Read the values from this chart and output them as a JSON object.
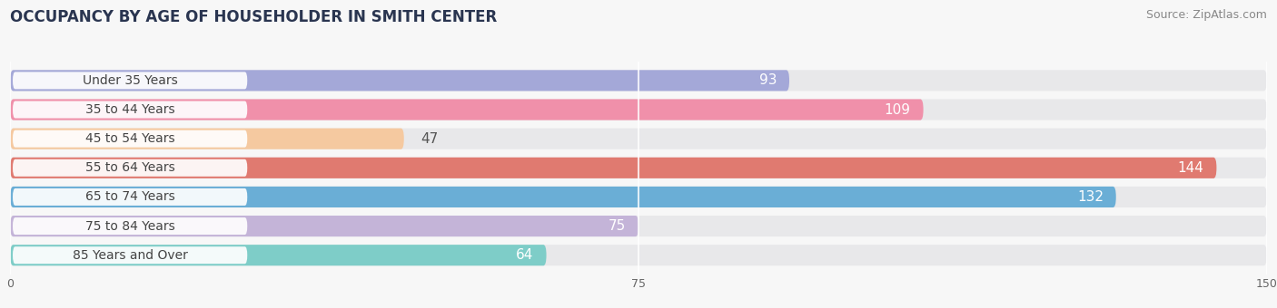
{
  "title": "OCCUPANCY BY AGE OF HOUSEHOLDER IN SMITH CENTER",
  "source": "Source: ZipAtlas.com",
  "categories": [
    "Under 35 Years",
    "35 to 44 Years",
    "45 to 54 Years",
    "55 to 64 Years",
    "65 to 74 Years",
    "75 to 84 Years",
    "85 Years and Over"
  ],
  "values": [
    93,
    109,
    47,
    144,
    132,
    75,
    64
  ],
  "bar_colors": [
    "#a4a8d8",
    "#f090aa",
    "#f5c9a0",
    "#e07a70",
    "#6aaed6",
    "#c4b4d8",
    "#7ecdc8"
  ],
  "bg_bar_color": "#e8e8ea",
  "pill_color": "#ffffff",
  "pill_text_color": "#444444",
  "xlim_min": 0,
  "xlim_max": 150,
  "xticks": [
    0,
    75,
    150
  ],
  "title_fontsize": 12,
  "source_fontsize": 9,
  "val_label_fontsize": 11,
  "cat_label_fontsize": 10,
  "bar_height": 0.72,
  "background_color": "#f7f7f7",
  "value_inside_color": "#ffffff",
  "value_outside_color": "#555555",
  "inside_threshold": 50
}
